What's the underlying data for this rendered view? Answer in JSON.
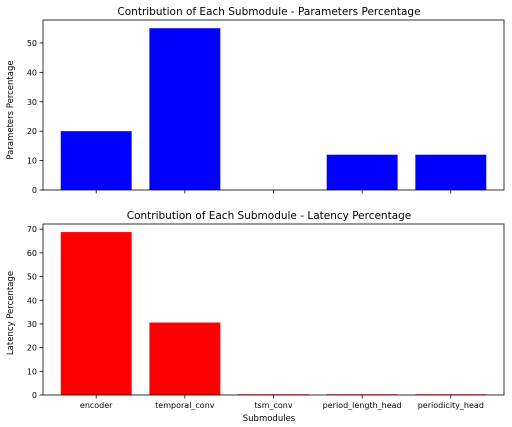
{
  "chart_data": [
    {
      "type": "bar",
      "title": "Contribution of Each Submodule - Parameters Percentage",
      "xlabel": "",
      "ylabel": "Parameters Percentage",
      "categories": [
        "encoder",
        "temporal_conv",
        "tsm_conv",
        "period_length_head",
        "periodicity_head"
      ],
      "show_category_labels": false,
      "values": [
        20,
        55,
        0,
        12,
        12
      ],
      "ylim": [
        0,
        57.8
      ],
      "yticks": [
        0,
        10,
        20,
        30,
        40,
        50
      ],
      "color": "#0000ff",
      "grid": false
    },
    {
      "type": "bar",
      "title": "Contribution of Each Submodule - Latency Percentage",
      "xlabel": "Submodules",
      "ylabel": "Latency Percentage",
      "categories": [
        "encoder",
        "temporal_conv",
        "tsm_conv",
        "period_length_head",
        "periodicity_head"
      ],
      "show_category_labels": true,
      "values": [
        68.8,
        30.6,
        0.3,
        0.3,
        0.3
      ],
      "ylim": [
        0,
        72.2
      ],
      "yticks": [
        0,
        10,
        20,
        30,
        40,
        50,
        60,
        70
      ],
      "color": "#ff0000",
      "grid": false
    }
  ]
}
